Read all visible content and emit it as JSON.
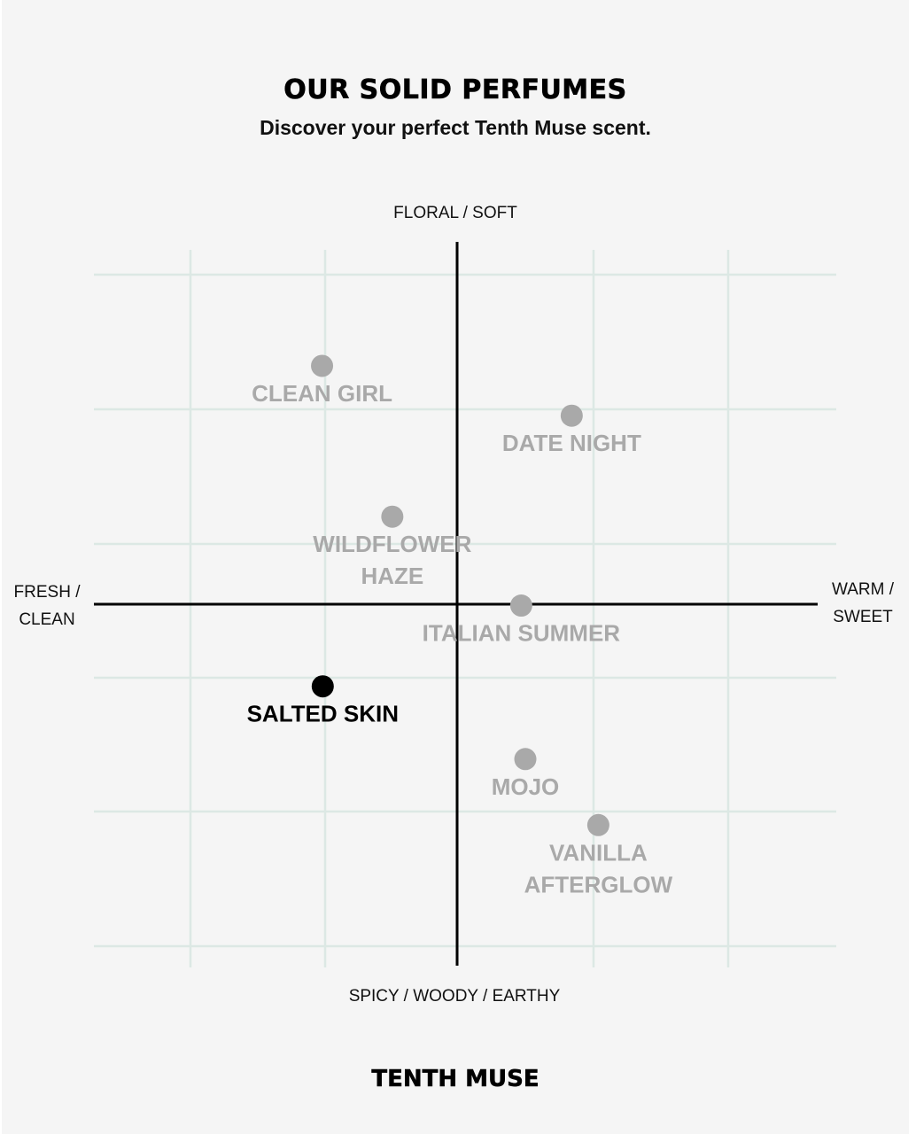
{
  "header": {
    "title": "OUR SOLID PERFUMES",
    "subtitle": "Discover your perfect Tenth Muse scent."
  },
  "footer": {
    "brand": "TENTH MUSE"
  },
  "colors": {
    "background": "#f5f5f5",
    "grid": "#dce8e4",
    "axis": "#000000",
    "point_muted": "#a9a9a9",
    "point_highlight": "#000000"
  },
  "chart_data": {
    "type": "scatter",
    "title": "OUR SOLID PERFUMES",
    "subtitle": "Discover your perfect Tenth Muse scent.",
    "axis_labels": {
      "top": "FLORAL / SOFT",
      "bottom": "SPICY / WOODY / EARTHY",
      "left": [
        "FRESH /",
        "CLEAN"
      ],
      "right": [
        "WARM /",
        "SWEET"
      ]
    },
    "xlim": [
      -2,
      2
    ],
    "ylim": [
      -2,
      2
    ],
    "grid": true,
    "points": [
      {
        "label": [
          "CLEAN GIRL"
        ],
        "x": -1.98,
        "y": 1.77,
        "highlight": false
      },
      {
        "label": [
          "DATE NIGHT"
        ],
        "x": 1.68,
        "y": 1.4,
        "highlight": false
      },
      {
        "label": [
          "WILDFLOWER",
          "HAZE"
        ],
        "x": -0.95,
        "y": 0.65,
        "highlight": false
      },
      {
        "label": [
          "ITALIAN SUMMER"
        ],
        "x": 0.94,
        "y": -0.01,
        "highlight": false
      },
      {
        "label": [
          "SALTED SKIN"
        ],
        "x": -1.97,
        "y": -0.61,
        "highlight": true
      },
      {
        "label": [
          "MOJO"
        ],
        "x": 1.0,
        "y": -1.15,
        "highlight": false
      },
      {
        "label": [
          "VANILLA",
          "AFTERGLOW"
        ],
        "x": 2.07,
        "y": -1.64,
        "highlight": false
      }
    ]
  }
}
